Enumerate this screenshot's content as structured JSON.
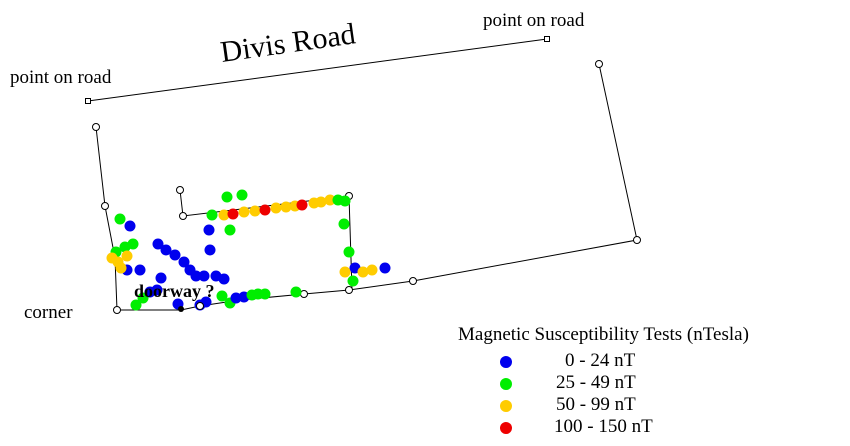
{
  "map": {
    "road_label": "Divis Road",
    "point_labels": {
      "left": "point on road",
      "right": "point on road"
    },
    "corner_label": "corner",
    "doorway_label": "doorway ?",
    "legend": {
      "title": "Magnetic Susceptibility Tests (nTesla)",
      "items": [
        {
          "label": "0  - 24 nT",
          "color": "#0000ee"
        },
        {
          "label": "25 - 49 nT",
          "color": "#00ee00"
        },
        {
          "label": "50 - 99 nT",
          "color": "#ffcc00"
        },
        {
          "label": "100 - 150 nT",
          "color": "#ee0000"
        }
      ]
    },
    "line_color": "#000000",
    "marker_radius_note": ""
  }
}
